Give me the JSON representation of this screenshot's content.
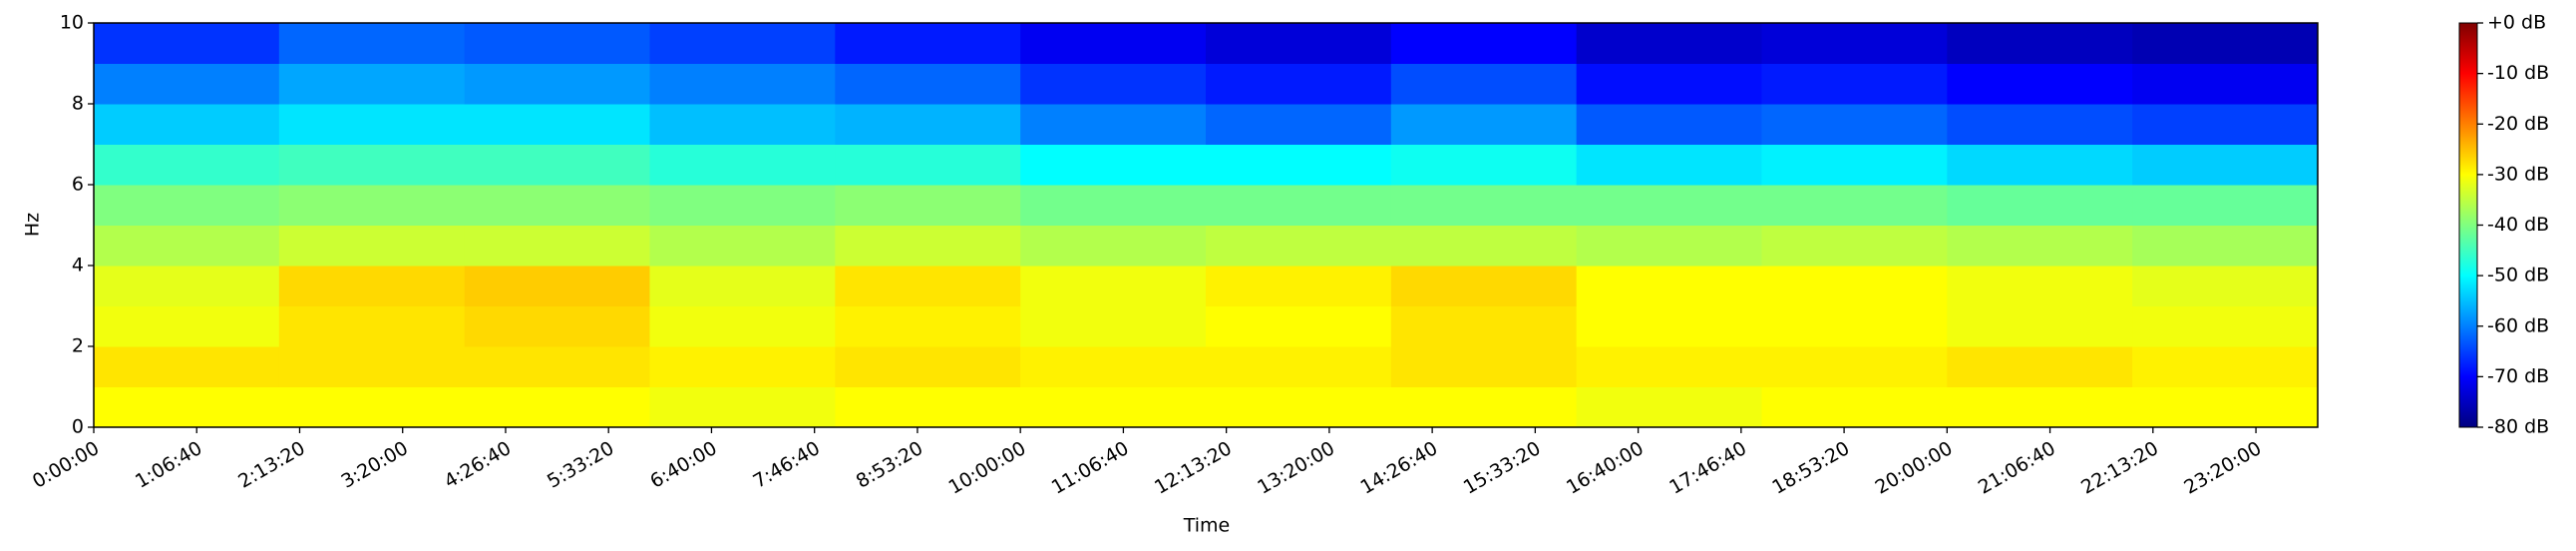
{
  "chart_data": {
    "type": "heatmap",
    "colormap": "jet",
    "x_label": "Time",
    "y_label": "Hz",
    "x_edges": [
      0,
      7200,
      14400,
      21600,
      28800,
      36000,
      43200,
      50400,
      57600,
      64800,
      72000,
      79200,
      86400
    ],
    "y_edges": [
      0,
      1,
      2,
      3,
      4,
      5,
      6,
      7,
      8,
      9,
      10
    ],
    "values": [
      [
        -30,
        -30,
        -30,
        -31,
        -30,
        -30,
        -30,
        -30,
        -31,
        -30,
        -30,
        -30
      ],
      [
        -28,
        -28,
        -28,
        -29,
        -28,
        -29,
        -29,
        -28,
        -29,
        -29,
        -28,
        -29
      ],
      [
        -31,
        -28,
        -27,
        -31,
        -29,
        -31,
        -30,
        -28,
        -30,
        -30,
        -31,
        -31
      ],
      [
        -32,
        -27,
        -26,
        -32,
        -28,
        -31,
        -29,
        -27,
        -30,
        -30,
        -31,
        -32
      ],
      [
        -36,
        -34,
        -34,
        -36,
        -34,
        -36,
        -35,
        -35,
        -36,
        -35,
        -36,
        -37
      ],
      [
        -40,
        -39,
        -39,
        -40,
        -39,
        -41,
        -41,
        -41,
        -41,
        -41,
        -42,
        -42
      ],
      [
        -46,
        -45,
        -45,
        -47,
        -47,
        -50,
        -50,
        -49,
        -52,
        -51,
        -53,
        -54
      ],
      [
        -54,
        -52,
        -52,
        -55,
        -56,
        -60,
        -62,
        -58,
        -63,
        -62,
        -64,
        -65
      ],
      [
        -60,
        -57,
        -58,
        -60,
        -62,
        -66,
        -68,
        -64,
        -69,
        -68,
        -70,
        -71
      ],
      [
        -66,
        -62,
        -63,
        -65,
        -68,
        -71,
        -73,
        -70,
        -74,
        -73,
        -75,
        -76
      ]
    ],
    "xlim": [
      0,
      86400
    ],
    "xticks": [
      {
        "value": 0,
        "label": "0:00:00"
      },
      {
        "value": 4000,
        "label": "1:06:40"
      },
      {
        "value": 8000,
        "label": "2:13:20"
      },
      {
        "value": 12000,
        "label": "3:20:00"
      },
      {
        "value": 16000,
        "label": "4:26:40"
      },
      {
        "value": 20000,
        "label": "5:33:20"
      },
      {
        "value": 24000,
        "label": "6:40:00"
      },
      {
        "value": 28000,
        "label": "7:46:40"
      },
      {
        "value": 32000,
        "label": "8:53:20"
      },
      {
        "value": 36000,
        "label": "10:00:00"
      },
      {
        "value": 40000,
        "label": "11:06:40"
      },
      {
        "value": 44000,
        "label": "12:13:20"
      },
      {
        "value": 48000,
        "label": "13:20:00"
      },
      {
        "value": 52000,
        "label": "14:26:40"
      },
      {
        "value": 56000,
        "label": "15:33:20"
      },
      {
        "value": 60000,
        "label": "16:40:00"
      },
      {
        "value": 64000,
        "label": "17:46:40"
      },
      {
        "value": 68000,
        "label": "18:53:20"
      },
      {
        "value": 72000,
        "label": "20:00:00"
      },
      {
        "value": 76000,
        "label": "21:06:40"
      },
      {
        "value": 80000,
        "label": "22:13:20"
      },
      {
        "value": 84000,
        "label": "23:20:00"
      }
    ],
    "ylim": [
      0,
      10
    ],
    "yticks": [
      0,
      2,
      4,
      6,
      8,
      10
    ],
    "clim": [
      -80,
      0
    ],
    "cticks": [
      {
        "value": 0,
        "label": "+0 dB"
      },
      {
        "value": -10,
        "label": "-10 dB"
      },
      {
        "value": -20,
        "label": "-20 dB"
      },
      {
        "value": -30,
        "label": "-30 dB"
      },
      {
        "value": -40,
        "label": "-40 dB"
      },
      {
        "value": -50,
        "label": "-50 dB"
      },
      {
        "value": -60,
        "label": "-60 dB"
      },
      {
        "value": -70,
        "label": "-70 dB"
      },
      {
        "value": -80,
        "label": "-80 dB"
      }
    ]
  }
}
